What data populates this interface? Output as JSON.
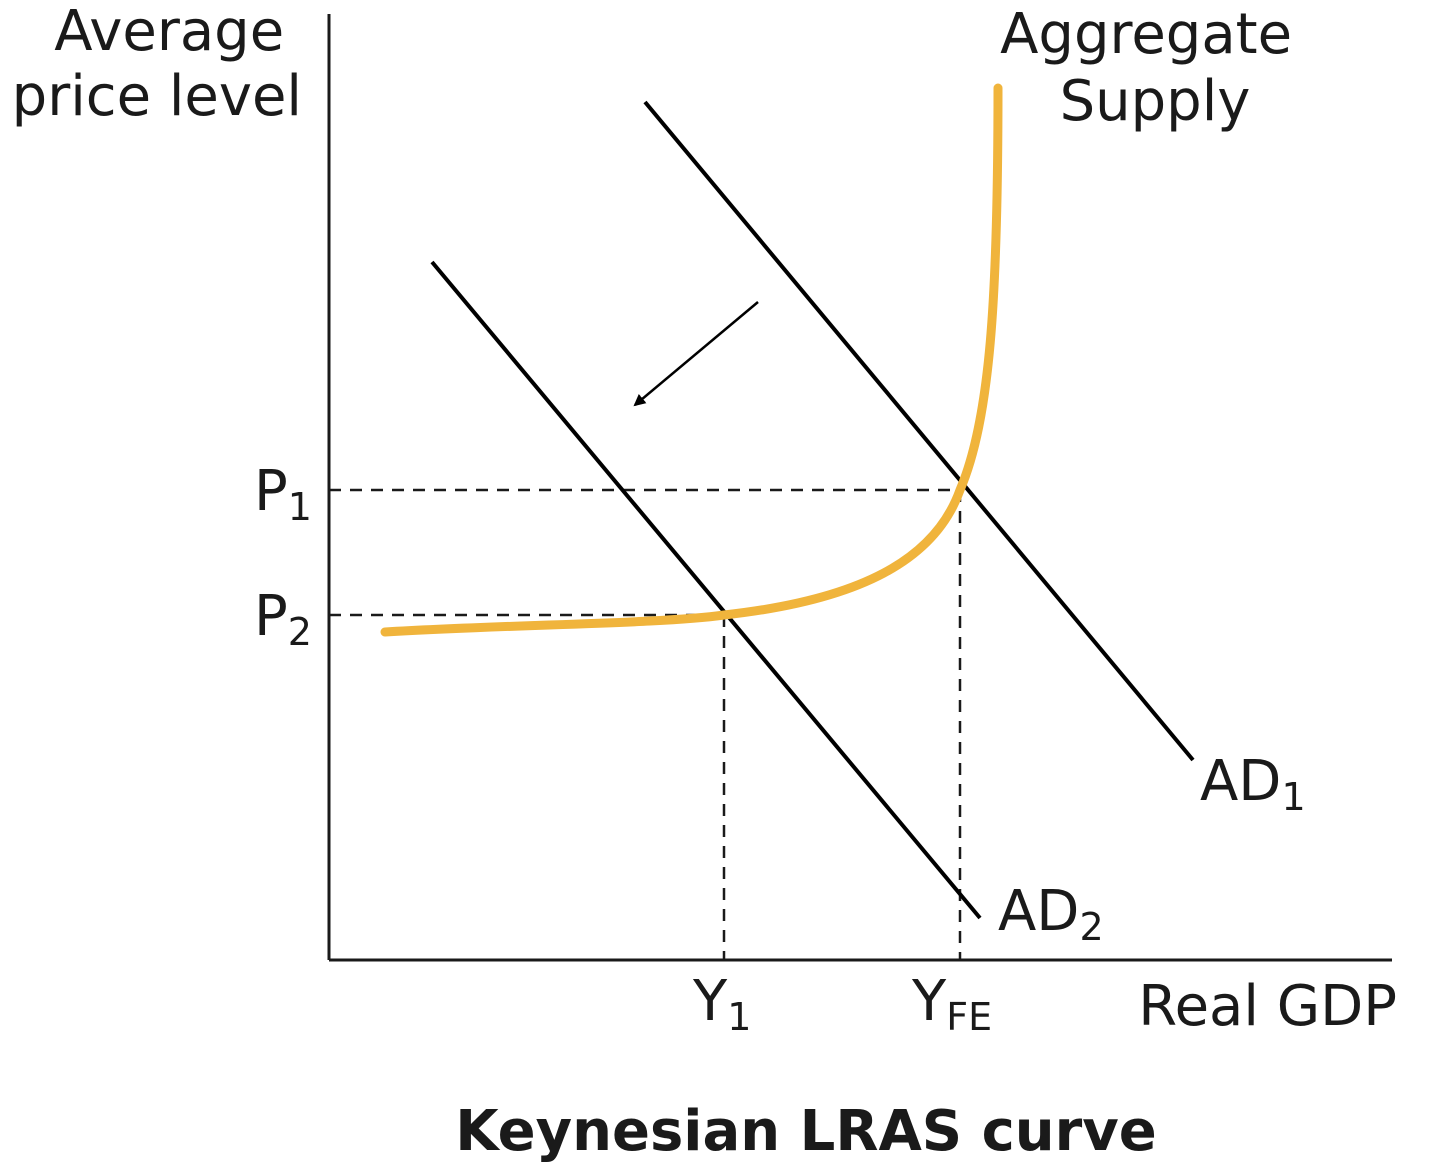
{
  "title": "Keynesian LRAS curve",
  "axes": {
    "y_label_line1": "Average",
    "y_label_line2": "price level",
    "x_label": "Real GDP"
  },
  "curves": {
    "as_label_line1": "Aggregate",
    "as_label_line2": "Supply",
    "ad1": {
      "main": "AD",
      "sub": "1"
    },
    "ad2": {
      "main": "AD",
      "sub": "2"
    }
  },
  "ticks": {
    "p1": {
      "main": "P",
      "sub": "1"
    },
    "p2": {
      "main": "P",
      "sub": "2"
    },
    "y1": {
      "main": "Y",
      "sub": "1"
    },
    "yfe": {
      "main": "Y",
      "sub": "FE"
    }
  },
  "colors": {
    "aggregate_supply": "#f0b43c",
    "aggregate_demand": "#000000",
    "axes": "#1a1a1a"
  },
  "arrow": {
    "direction": "down-left",
    "meaning": "shift from AD1 to AD2"
  }
}
